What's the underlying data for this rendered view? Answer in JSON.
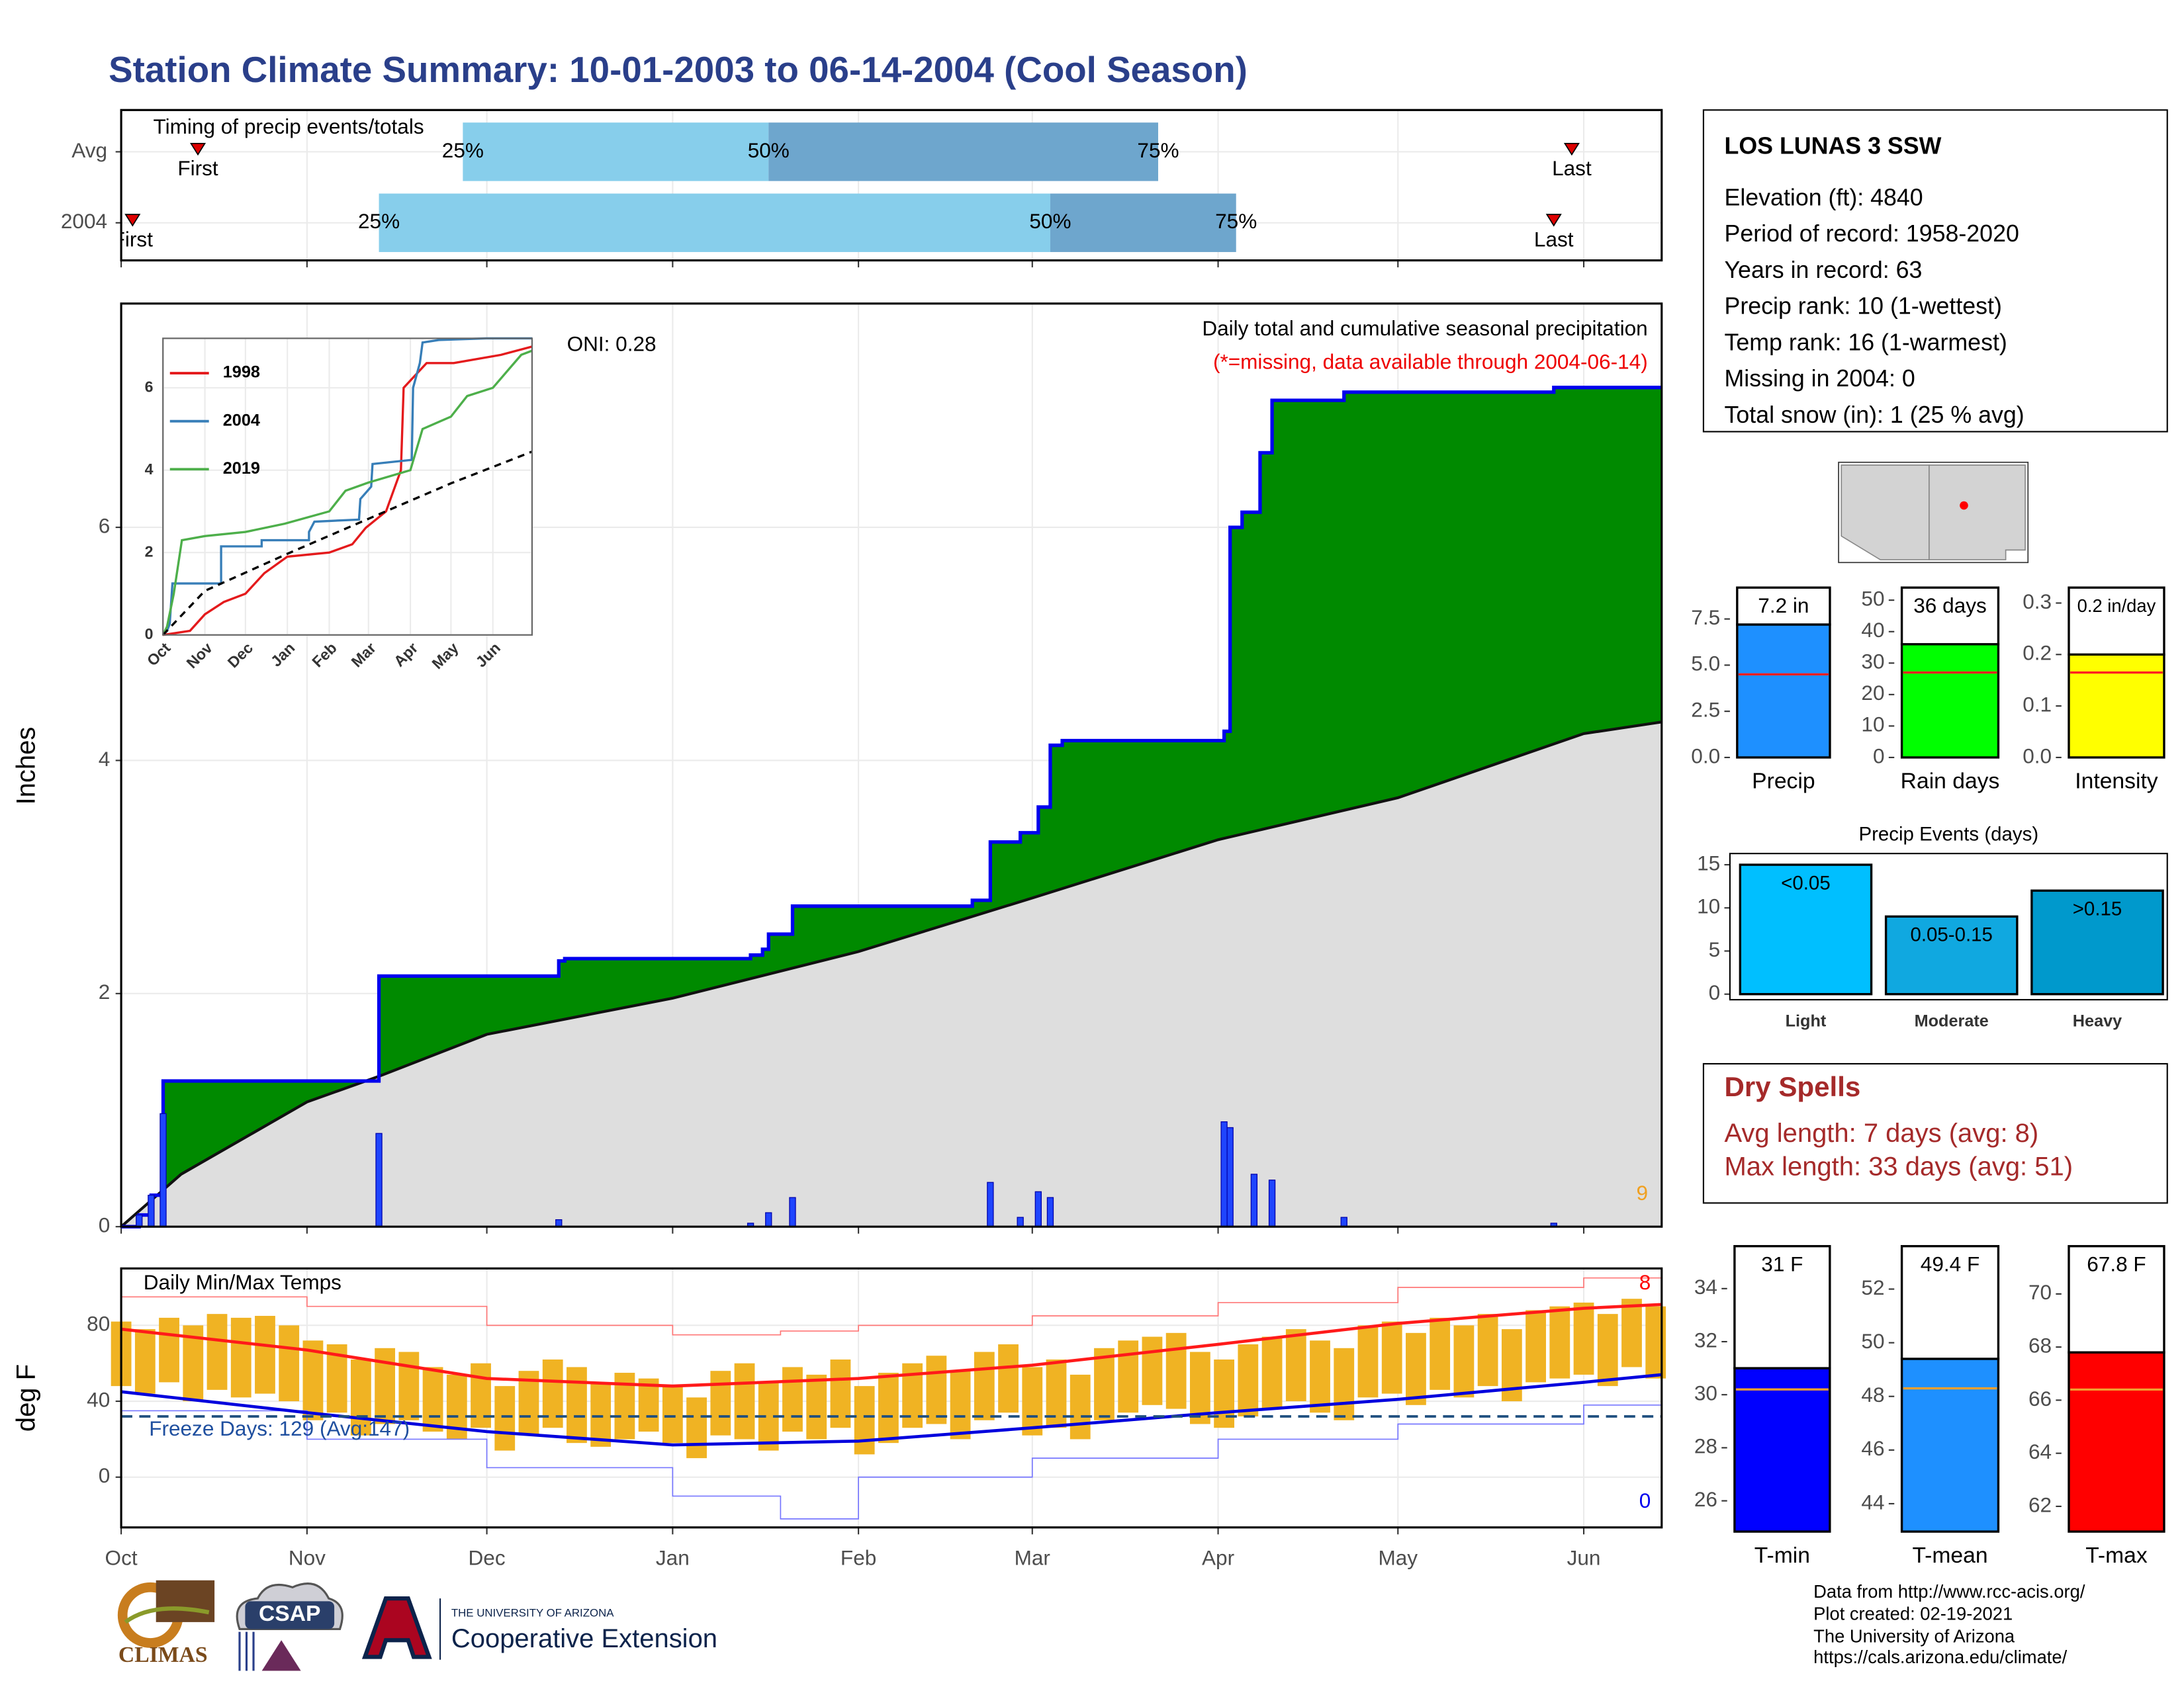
{
  "title": "Station Climate Summary: 10-01-2003 to 06-14-2004 (Cool Season)",
  "chart_data": [
    {
      "type": "timing",
      "title": "Timing of precip events/totals",
      "xlim": [
        0,
        257
      ],
      "xticks": [
        0,
        31,
        61,
        92,
        123,
        152,
        183,
        213,
        244
      ],
      "quantile_labels": [
        "25%",
        "50%",
        "75%"
      ],
      "first_label": "First",
      "last_label": "Last",
      "colors": [
        "#87ceeb",
        "#6ea6cd"
      ],
      "marker_color": "#dd0000",
      "rows": [
        {
          "name": "Avg",
          "first": 12.8,
          "q25": 57,
          "q50": 108,
          "q75": 173,
          "last": 242
        },
        {
          "name": "2004",
          "first": 1.9,
          "q25": 43,
          "q50": 155,
          "q75": 186,
          "last": 239
        }
      ]
    },
    {
      "type": "step-area",
      "title": "Daily total and cumulative seasonal precipitation",
      "subtitle": "(*=missing, data available through 2004-06-14)",
      "y_label": "Inches",
      "annotations": [
        "ONI: 0.28",
        "9"
      ],
      "xlim": [
        0,
        257
      ],
      "xticks": [
        0,
        31,
        61,
        92,
        123,
        152,
        183,
        213,
        244
      ],
      "ylim": [
        0,
        7.92
      ],
      "yticks": [
        0,
        2,
        4,
        6
      ],
      "grid": true,
      "cumulative_x": [
        0,
        3,
        5,
        7,
        43,
        73,
        74,
        105,
        107,
        108,
        112,
        142,
        145,
        150,
        153,
        155,
        157,
        184,
        185,
        187,
        190,
        192,
        204,
        239,
        257
      ],
      "cumulative": [
        0,
        0.1,
        0.27,
        1.25,
        2.15,
        2.28,
        2.3,
        2.33,
        2.38,
        2.51,
        2.75,
        2.8,
        3.3,
        3.38,
        3.6,
        4.13,
        4.17,
        4.25,
        6.0,
        6.13,
        6.64,
        7.09,
        7.16,
        7.2,
        7.2
      ],
      "average_x": [
        0,
        10,
        31,
        43,
        61,
        92,
        123,
        152,
        183,
        213,
        244,
        257
      ],
      "average": [
        0,
        0.45,
        1.07,
        1.29,
        1.65,
        1.96,
        2.36,
        2.82,
        3.32,
        3.68,
        4.23,
        4.33
      ],
      "daily_x": [
        3,
        5,
        7,
        43,
        73,
        105,
        108,
        112,
        145,
        150,
        153,
        155,
        184,
        185,
        189,
        192,
        204,
        239
      ],
      "daily": [
        0.1,
        0.27,
        0.97,
        0.8,
        0.06,
        0.03,
        0.12,
        0.25,
        0.38,
        0.08,
        0.3,
        0.25,
        0.9,
        0.85,
        0.45,
        0.4,
        0.08,
        0.03
      ],
      "colors": {
        "area": "#008a00",
        "line": "#0000ee",
        "average": "#dedede",
        "daily": "#1f45ff"
      }
    },
    {
      "type": "line",
      "xlim": [
        0,
        273
      ],
      "ylim": [
        0,
        7.2
      ],
      "yticks": [
        0,
        2,
        4,
        6
      ],
      "xticks": [
        {
          "value": 0,
          "label": "Oct"
        },
        {
          "value": 31,
          "label": "Nov"
        },
        {
          "value": 61,
          "label": "Dec"
        },
        {
          "value": 92,
          "label": "Jan"
        },
        {
          "value": 123,
          "label": "Feb"
        },
        {
          "value": 152,
          "label": "Mar"
        },
        {
          "value": 183,
          "label": "Apr"
        },
        {
          "value": 213,
          "label": "May"
        },
        {
          "value": 244,
          "label": "Jun"
        }
      ],
      "series": [
        {
          "name": "1998",
          "color": "#e41a1c",
          "x": [
            0,
            20,
            31,
            45,
            61,
            75,
            92,
            123,
            140,
            150,
            165,
            176,
            178,
            195,
            215,
            250,
            273
          ],
          "values": [
            0,
            0.1,
            0.5,
            0.8,
            1.0,
            1.5,
            1.9,
            2.0,
            2.2,
            2.6,
            3.0,
            4.0,
            6.0,
            6.6,
            6.6,
            6.8,
            7.0
          ]
        },
        {
          "name": "2004",
          "color": "#377eb8",
          "x": [
            0,
            3,
            5,
            7,
            43,
            43,
            73,
            73,
            108,
            108,
            112,
            145,
            146,
            154,
            155,
            184,
            185,
            190,
            192,
            204,
            239,
            273
          ],
          "values": [
            0,
            0.1,
            0.27,
            1.25,
            1.25,
            2.15,
            2.15,
            2.3,
            2.3,
            2.5,
            2.75,
            2.8,
            3.3,
            3.6,
            4.15,
            4.25,
            6.0,
            6.6,
            7.1,
            7.16,
            7.2,
            7.2
          ]
        },
        {
          "name": "2019",
          "color": "#4daf4a",
          "x": [
            0,
            3,
            8,
            14,
            31,
            61,
            90,
            123,
            135,
            152,
            183,
            192,
            213,
            225,
            244,
            265,
            273
          ],
          "values": [
            0,
            0.2,
            1.0,
            2.3,
            2.4,
            2.5,
            2.7,
            3.0,
            3.5,
            3.7,
            4.0,
            5.0,
            5.3,
            5.8,
            6.0,
            6.8,
            6.9
          ]
        },
        {
          "color": "#000000",
          "dashed": true,
          "x": [
            0,
            31,
            92,
            152,
            213,
            273
          ],
          "values": [
            0,
            1.07,
            1.97,
            2.82,
            3.68,
            4.45
          ]
        }
      ]
    },
    {
      "type": "temperature-range",
      "title": "Daily Min/Max Temps",
      "y_label": "deg F",
      "annotations": [
        "Freeze Days: 129 (Avg:147)",
        "8",
        "0"
      ],
      "xlim": [
        0,
        257
      ],
      "ylim": [
        -26.5,
        110
      ],
      "yticks": [
        0,
        40,
        80
      ],
      "xticks": [
        {
          "value": 0,
          "label": "Oct"
        },
        {
          "value": 31,
          "label": "Nov"
        },
        {
          "value": 61,
          "label": "Dec"
        },
        {
          "value": 92,
          "label": "Jan"
        },
        {
          "value": 123,
          "label": "Feb"
        },
        {
          "value": 152,
          "label": "Mar"
        },
        {
          "value": 183,
          "label": "Apr"
        },
        {
          "value": 213,
          "label": "May"
        },
        {
          "value": 244,
          "label": "Jun"
        }
      ],
      "freeze_line": 32,
      "days": [
        0,
        4,
        8,
        12,
        16,
        20,
        24,
        28,
        32,
        36,
        40,
        44,
        48,
        52,
        56,
        60,
        64,
        68,
        72,
        76,
        80,
        84,
        88,
        92,
        96,
        100,
        104,
        108,
        112,
        116,
        120,
        124,
        128,
        132,
        136,
        140,
        144,
        148,
        152,
        156,
        160,
        164,
        168,
        172,
        176,
        180,
        184,
        188,
        192,
        196,
        200,
        204,
        208,
        212,
        216,
        220,
        224,
        228,
        232,
        236,
        240,
        244,
        248,
        252,
        256
      ],
      "daily_max": [
        82,
        78,
        84,
        80,
        86,
        84,
        85,
        80,
        72,
        70,
        62,
        68,
        66,
        58,
        54,
        60,
        48,
        56,
        62,
        58,
        50,
        55,
        52,
        48,
        42,
        56,
        60,
        50,
        58,
        54,
        62,
        48,
        55,
        60,
        64,
        56,
        66,
        70,
        58,
        62,
        54,
        68,
        72,
        74,
        76,
        66,
        62,
        70,
        74,
        78,
        72,
        68,
        80,
        82,
        76,
        84,
        80,
        86,
        78,
        88,
        90,
        92,
        86,
        94,
        90
      ],
      "daily_min": [
        48,
        44,
        50,
        40,
        46,
        42,
        44,
        40,
        30,
        34,
        22,
        28,
        30,
        24,
        20,
        26,
        14,
        22,
        26,
        18,
        16,
        20,
        24,
        18,
        10,
        22,
        20,
        14,
        24,
        20,
        26,
        12,
        18,
        26,
        28,
        20,
        30,
        34,
        22,
        26,
        20,
        30,
        34,
        38,
        36,
        28,
        26,
        32,
        36,
        40,
        34,
        30,
        42,
        44,
        38,
        46,
        42,
        48,
        40,
        50,
        52,
        54,
        48,
        58,
        52
      ],
      "normal_x": [
        0,
        31,
        61,
        92,
        123,
        152,
        183,
        213,
        244,
        257
      ],
      "normal_max": [
        78,
        67,
        52,
        48,
        52,
        59,
        70,
        81,
        89,
        91
      ],
      "normal_min": [
        45,
        34,
        24,
        17,
        19,
        26,
        34,
        41,
        50,
        54
      ],
      "record_x": [
        0,
        31,
        61,
        92,
        110,
        123,
        152,
        183,
        213,
        244,
        257
      ],
      "record_high": [
        95,
        90,
        80,
        75,
        77,
        80,
        85,
        92,
        100,
        105,
        106
      ],
      "record_low": [
        35,
        20,
        5,
        -10,
        -22,
        0,
        10,
        20,
        28,
        38,
        40
      ],
      "colors": {
        "bars": "#f0b323",
        "max": "#ff1a1a",
        "min": "#0000dd",
        "record_high": "#ff7777",
        "record_low": "#7777ff",
        "freeze": "#1f4f7f",
        "annotations": [
          "#1f4f9f",
          "#ff0000",
          "#0000ee"
        ]
      }
    },
    {
      "type": "bar",
      "categories": [
        "Precip"
      ],
      "values": [
        7.2
      ],
      "value_labels": [
        "7.2 in"
      ],
      "color": "#1e90ff",
      "reference": 4.5,
      "reference_color": "#ff2020",
      "ylim": [
        0,
        9.2
      ],
      "yticks": [
        {
          "value": 0,
          "label": "0.0"
        },
        2.5,
        {
          "value": 5,
          "label": "5.0"
        },
        7.5
      ]
    },
    {
      "type": "bar",
      "categories": [
        "Rain days"
      ],
      "values": [
        36
      ],
      "value_labels": [
        "36 days"
      ],
      "color": "#00ff00",
      "reference": 27,
      "reference_color": "#ff2020",
      "ylim": [
        0,
        54
      ],
      "yticks": [
        0,
        10,
        20,
        30,
        40,
        50
      ]
    },
    {
      "type": "bar",
      "categories": [
        "Intensity"
      ],
      "values": [
        0.2
      ],
      "value_labels": [
        "0.2 in/day"
      ],
      "color": "#ffff00",
      "reference": 0.165,
      "reference_color": "#ff2020",
      "ylim": [
        0,
        0.33
      ],
      "yticks": [
        {
          "value": 0,
          "label": "0.0"
        },
        0.1,
        0.2,
        0.3
      ]
    },
    {
      "type": "bar",
      "title": "Precip Events (days)",
      "categories": [
        "Light",
        "Moderate",
        "Heavy"
      ],
      "values": [
        15,
        9,
        12
      ],
      "bar_labels": [
        "<0.05",
        "0.05-0.15",
        ">0.15"
      ],
      "colors": [
        "#00bfff",
        "#10a8e0",
        "#0099cc"
      ],
      "ylim": [
        0,
        16.3
      ],
      "yticks": [
        0,
        5,
        10,
        15
      ]
    },
    {
      "type": "bar",
      "categories": [
        "T-min"
      ],
      "values": [
        31
      ],
      "value_labels": [
        "31 F"
      ],
      "color": "#0000ff",
      "reference": 30.2,
      "reference_color": "#f0a030",
      "ylim": [
        24.84,
        35.6
      ],
      "yticks": [
        26,
        28,
        30,
        32,
        34
      ]
    },
    {
      "type": "bar",
      "categories": [
        "T-mean"
      ],
      "values": [
        49.4
      ],
      "value_labels": [
        "49.4 F"
      ],
      "color": "#1e90ff",
      "reference": 48.3,
      "reference_color": "#f0a030",
      "ylim": [
        42.96,
        53.6
      ],
      "yticks": [
        44,
        46,
        48,
        50,
        52
      ]
    },
    {
      "type": "bar",
      "categories": [
        "T-max"
      ],
      "values": [
        67.8
      ],
      "value_labels": [
        "67.8 F"
      ],
      "color": "#ff0000",
      "reference": 66.4,
      "reference_color": "#f0a030",
      "ylim": [
        61.05,
        71.8
      ],
      "yticks": [
        62,
        64,
        66,
        68,
        70
      ]
    }
  ],
  "station": {
    "name": "LOS LUNAS 3 SSW",
    "lines": [
      "Elevation (ft): 4840",
      "Period of record: 1958-2020",
      "Years in record: 63",
      "Precip rank: 10 (1-wettest)",
      "Temp rank: 16 (1-warmest)",
      "Missing in 2004: 0",
      "Total snow (in): 1 (25 % avg)"
    ]
  },
  "dry_spells": {
    "title": "Dry Spells",
    "lines": [
      "Avg length: 7 days (avg: 8)",
      "Max length: 33 days (avg: 51)"
    ]
  },
  "credits": [
    "Data from http://www.rcc-acis.org/",
    "Plot created: 02-19-2021",
    "The University of Arizona",
    "https://cals.arizona.edu/climate/"
  ],
  "logos": {
    "climas": "CLIMAS",
    "csap": "CSAP",
    "university": "THE UNIVERSITY OF ARIZONA",
    "extension": "Cooperative Extension"
  }
}
